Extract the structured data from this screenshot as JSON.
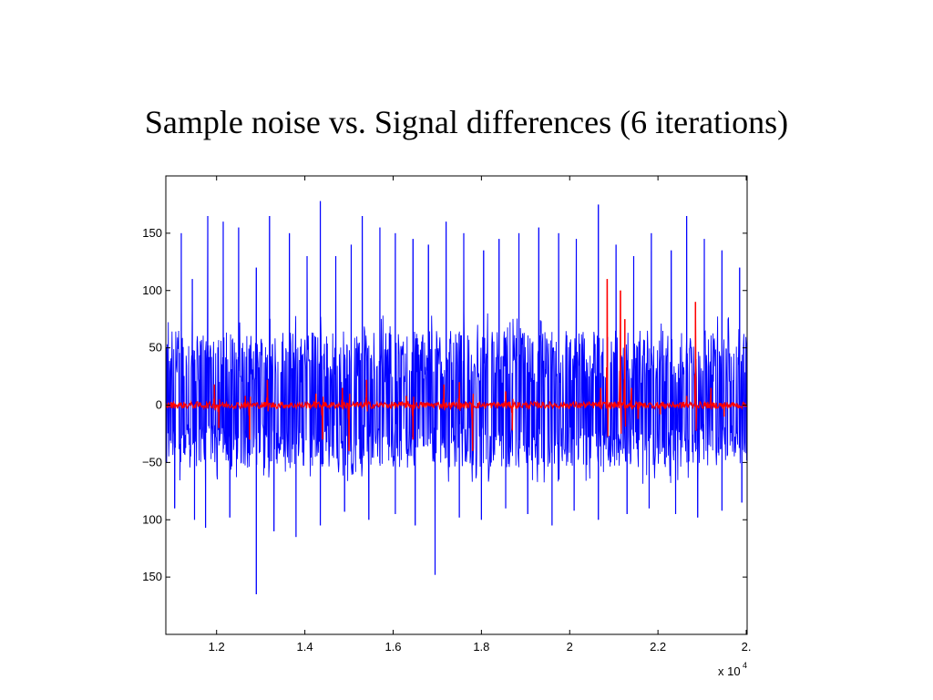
{
  "slide": {
    "title": "Sample noise vs. Signal differences (6 iterations)"
  },
  "chart_data": {
    "type": "line",
    "title": "Sample noise vs. Signal differences (6 iterations)",
    "xlabel": "",
    "ylabel": "",
    "xlim": [
      10850,
      24020
    ],
    "ylim": [
      -200,
      200
    ],
    "x_tick_labels": [
      "1.2",
      "1.4",
      "1.6",
      "1.8",
      "2",
      "2.2",
      "2."
    ],
    "x_tick_values": [
      12000,
      14000,
      16000,
      18000,
      20000,
      22000,
      24000
    ],
    "x_exponent_label": "x 10",
    "x_exponent_power": "4",
    "y_tick_labels": [
      "150",
      "100",
      "50",
      "0",
      "−50",
      "100",
      "150"
    ],
    "y_tick_values": [
      150,
      100,
      50,
      0,
      -50,
      -100,
      -150
    ],
    "grid": false,
    "series": [
      {
        "color": "#0000ff",
        "noise_band": [
          -55,
          65
        ],
        "peaks_up": [
          [
            11200,
            150
          ],
          [
            11450,
            110
          ],
          [
            11800,
            165
          ],
          [
            12150,
            160
          ],
          [
            12500,
            155
          ],
          [
            12900,
            120
          ],
          [
            13200,
            165
          ],
          [
            13650,
            150
          ],
          [
            14050,
            130
          ],
          [
            14350,
            178
          ],
          [
            14700,
            130
          ],
          [
            15050,
            140
          ],
          [
            15300,
            165
          ],
          [
            15700,
            155
          ],
          [
            16050,
            150
          ],
          [
            16450,
            145
          ],
          [
            16800,
            140
          ],
          [
            17200,
            160
          ],
          [
            17600,
            150
          ],
          [
            18050,
            135
          ],
          [
            18400,
            145
          ],
          [
            18850,
            150
          ],
          [
            19300,
            155
          ],
          [
            19750,
            150
          ],
          [
            20150,
            145
          ],
          [
            20650,
            175
          ],
          [
            21050,
            140
          ],
          [
            21450,
            130
          ],
          [
            21850,
            150
          ],
          [
            22300,
            135
          ],
          [
            22650,
            165
          ],
          [
            23050,
            145
          ],
          [
            23450,
            135
          ],
          [
            23850,
            120
          ]
        ],
        "peaks_down": [
          [
            11050,
            -90
          ],
          [
            11500,
            -100
          ],
          [
            11750,
            -107
          ],
          [
            12300,
            -98
          ],
          [
            12900,
            -165
          ],
          [
            13300,
            -110
          ],
          [
            13800,
            -115
          ],
          [
            14350,
            -105
          ],
          [
            14900,
            -93
          ],
          [
            15450,
            -100
          ],
          [
            16050,
            -95
          ],
          [
            16500,
            -105
          ],
          [
            16950,
            -148
          ],
          [
            17500,
            -98
          ],
          [
            18000,
            -100
          ],
          [
            18550,
            -90
          ],
          [
            19050,
            -95
          ],
          [
            19600,
            -105
          ],
          [
            20100,
            -92
          ],
          [
            20650,
            -100
          ],
          [
            21300,
            -95
          ],
          [
            21800,
            -90
          ],
          [
            22400,
            -95
          ],
          [
            22900,
            -98
          ],
          [
            23450,
            -92
          ],
          [
            23900,
            -85
          ]
        ]
      },
      {
        "color": "#ff0000",
        "noise_band": [
          -3,
          3
        ],
        "spikes": [
          [
            11950,
            18
          ],
          [
            12050,
            -20
          ],
          [
            12650,
            8
          ],
          [
            12750,
            -30
          ],
          [
            13150,
            22
          ],
          [
            14250,
            10
          ],
          [
            14400,
            -30
          ],
          [
            14850,
            15
          ],
          [
            15000,
            -40
          ],
          [
            15400,
            22
          ],
          [
            16300,
            8
          ],
          [
            16450,
            -30
          ],
          [
            17150,
            18
          ],
          [
            17500,
            20
          ],
          [
            17800,
            -40
          ],
          [
            18550,
            12
          ],
          [
            18700,
            -22
          ],
          [
            20700,
            15
          ],
          [
            20850,
            110
          ],
          [
            21150,
            100
          ],
          [
            21250,
            75
          ],
          [
            21400,
            15
          ],
          [
            21550,
            -12
          ],
          [
            22050,
            -8
          ],
          [
            22650,
            8
          ],
          [
            22850,
            90
          ],
          [
            23200,
            15
          ],
          [
            23500,
            -10
          ]
        ]
      }
    ]
  }
}
